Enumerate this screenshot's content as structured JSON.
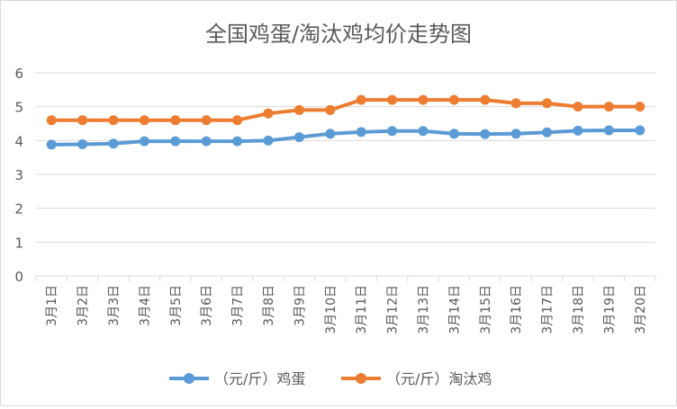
{
  "chart_data": {
    "type": "line",
    "title": "全国鸡蛋/淘汰鸡均价走势图",
    "xlabel": "",
    "ylabel": "",
    "ylim": [
      0,
      6
    ],
    "yticks": [
      "0",
      "1",
      "2",
      "3",
      "4",
      "5",
      "6"
    ],
    "grid": true,
    "legend_position": "bottom",
    "categories": [
      "3月1日",
      "3月2日",
      "3月3日",
      "3月4日",
      "3月5日",
      "3月6日",
      "3月7日",
      "3月8日",
      "3月9日",
      "3月10日",
      "3月11日",
      "3月12日",
      "3月13日",
      "3月14日",
      "3月15日",
      "3月16日",
      "3月17日",
      "3月18日",
      "3月19日",
      "3月20日"
    ],
    "series": [
      {
        "name": "（元/斤）鸡蛋",
        "color": "#5b9bd5",
        "values": [
          3.88,
          3.89,
          3.91,
          3.98,
          3.98,
          3.98,
          3.98,
          4.0,
          4.1,
          4.2,
          4.25,
          4.28,
          4.28,
          4.2,
          4.19,
          4.2,
          4.24,
          4.29,
          4.3,
          4.3
        ]
      },
      {
        "name": "（元/斤）淘汰鸡",
        "color": "#ed7d31",
        "values": [
          4.6,
          4.6,
          4.6,
          4.6,
          4.6,
          4.6,
          4.6,
          4.8,
          4.9,
          4.9,
          5.2,
          5.2,
          5.2,
          5.2,
          5.2,
          5.1,
          5.1,
          5.0,
          5.0,
          5.0
        ]
      }
    ]
  },
  "colors": {
    "grid": "#d9d9d9",
    "axis_text": "#595959",
    "title": "#595959"
  }
}
